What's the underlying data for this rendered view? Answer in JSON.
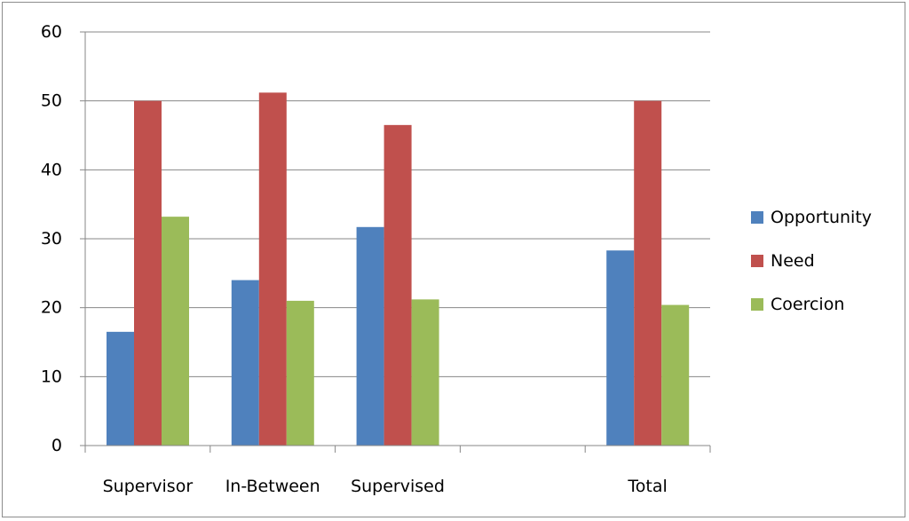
{
  "chart_data": {
    "type": "bar",
    "categories": [
      "Supervisor",
      "In-Between",
      "Supervised",
      "",
      "Total"
    ],
    "series": [
      {
        "name": "Opportunity",
        "color": "#4f81bd",
        "values": [
          16.5,
          24.0,
          31.7,
          null,
          28.3
        ]
      },
      {
        "name": "Need",
        "color": "#c0504d",
        "values": [
          50.0,
          51.2,
          46.5,
          null,
          50.0
        ]
      },
      {
        "name": "Coercion",
        "color": "#9bbb59",
        "values": [
          33.2,
          21.0,
          21.2,
          null,
          20.4
        ]
      }
    ],
    "ylim": [
      0,
      60
    ],
    "yticks": [
      0,
      10,
      20,
      30,
      40,
      50,
      60
    ],
    "title": "",
    "xlabel": "",
    "ylabel": "",
    "grid": true,
    "legend": "right"
  }
}
